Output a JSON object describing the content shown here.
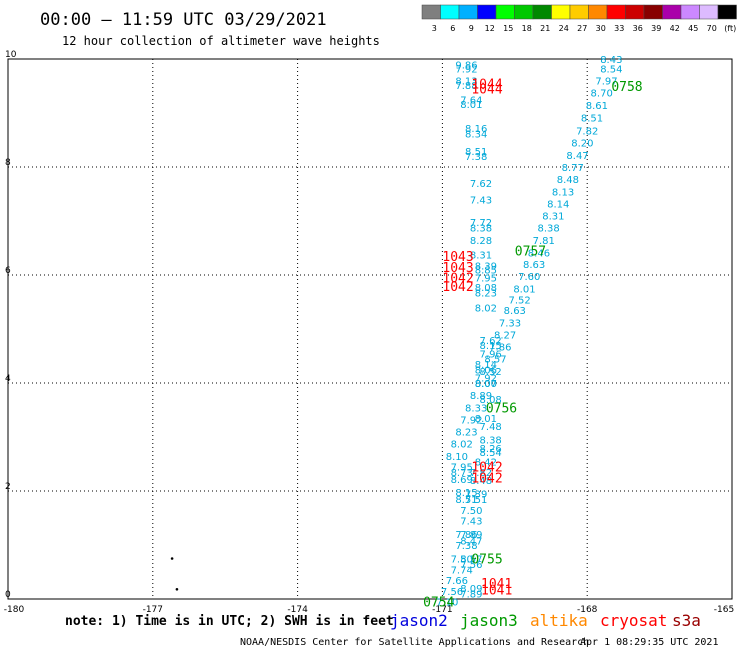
{
  "header": {
    "title": "00:00 – 11:59 UTC 03/29/2021",
    "subtitle": "12 hour collection of altimeter wave heights"
  },
  "colorbar": {
    "labels": [
      "3",
      "6",
      "9",
      "12",
      "15",
      "18",
      "21",
      "24",
      "27",
      "30",
      "33",
      "36",
      "39",
      "42",
      "45",
      "70",
      "(ft)"
    ],
    "colors": [
      "#7f7f7f",
      "#00ffff",
      "#00b0ff",
      "#0000ff",
      "#00ff00",
      "#00c800",
      "#008800",
      "#ffff00",
      "#ffcc00",
      "#ff8800",
      "#ff0000",
      "#cc0000",
      "#880000",
      "#aa00aa",
      "#cc88ff",
      "#ddbbff",
      "#000000"
    ]
  },
  "footer": {
    "note": "note: 1) Time is in UTC; 2) SWH is in feet",
    "credit": "NOAA/NESDIS Center for Satellite Applications and Research",
    "timestamp": "Apr  1 08:29:35 UTC 2021"
  },
  "legend": [
    {
      "name": "jason2",
      "color": "#0000dd"
    },
    {
      "name": "jason3",
      "color": "#009900"
    },
    {
      "name": "altika",
      "color": "#ff8800"
    },
    {
      "name": "cryosat",
      "color": "#ff0000"
    },
    {
      "name": "s3a",
      "color": "#990000"
    }
  ],
  "chart_data": {
    "type": "scatter",
    "xlim": [
      -180,
      -165
    ],
    "ylim": [
      0,
      10
    ],
    "xticks": [
      "-180",
      "-177",
      "-174",
      "-171",
      "-168",
      "-165"
    ],
    "yticks": [
      "0",
      "2",
      "4",
      "6",
      "8",
      "10"
    ],
    "grid": true,
    "value_color": "#00a8d8",
    "track_left": [
      {
        "x": -170.5,
        "y": 9.9,
        "v": "9.86"
      },
      {
        "x": -170.5,
        "y": 9.82,
        "v": "7.92"
      },
      {
        "x": -170.5,
        "y": 9.6,
        "v": "8.13"
      },
      {
        "x": -170.5,
        "y": 9.52,
        "v": "7.88"
      },
      {
        "x": -170.4,
        "y": 9.25,
        "v": "7.64"
      },
      {
        "x": -170.4,
        "y": 9.17,
        "v": "8.01"
      },
      {
        "x": -170.3,
        "y": 8.72,
        "v": "8.16"
      },
      {
        "x": -170.3,
        "y": 8.62,
        "v": "8.34"
      },
      {
        "x": -170.3,
        "y": 8.3,
        "v": "8.51"
      },
      {
        "x": -170.3,
        "y": 8.2,
        "v": "7.38"
      },
      {
        "x": -170.2,
        "y": 7.7,
        "v": "7.62"
      },
      {
        "x": -170.2,
        "y": 7.4,
        "v": "7.43"
      },
      {
        "x": -170.2,
        "y": 6.98,
        "v": "7.72"
      },
      {
        "x": -170.2,
        "y": 6.88,
        "v": "8.38"
      },
      {
        "x": -170.2,
        "y": 6.65,
        "v": "8.28"
      },
      {
        "x": -170.2,
        "y": 6.38,
        "v": "8.31"
      },
      {
        "x": -170.1,
        "y": 6.18,
        "v": "8.39"
      },
      {
        "x": -170.1,
        "y": 6.1,
        "v": "8.85"
      },
      {
        "x": -170.1,
        "y": 5.95,
        "v": "7.95"
      },
      {
        "x": -170.1,
        "y": 5.78,
        "v": "8.08"
      },
      {
        "x": -170.1,
        "y": 5.68,
        "v": "8.23"
      },
      {
        "x": -170.1,
        "y": 5.4,
        "v": "8.02"
      },
      {
        "x": -170.0,
        "y": 4.8,
        "v": "7.62"
      },
      {
        "x": -170.0,
        "y": 4.7,
        "v": "8.15"
      },
      {
        "x": -170.0,
        "y": 4.55,
        "v": "7.96"
      },
      {
        "x": -170.1,
        "y": 4.35,
        "v": "8.14"
      },
      {
        "x": -170.1,
        "y": 4.25,
        "v": "8.06"
      },
      {
        "x": -170.1,
        "y": 4.1,
        "v": "7.92"
      },
      {
        "x": -170.1,
        "y": 4.0,
        "v": "8.07"
      },
      {
        "x": -170.0,
        "y": 3.7,
        "v": "8.08"
      },
      {
        "x": -170.1,
        "y": 3.35,
        "v": "8.01"
      },
      {
        "x": -170.0,
        "y": 3.2,
        "v": "7.48"
      },
      {
        "x": -170.0,
        "y": 2.95,
        "v": "8.38"
      },
      {
        "x": -170.0,
        "y": 2.8,
        "v": "8.26"
      },
      {
        "x": -170.0,
        "y": 2.72,
        "v": "8.54"
      },
      {
        "x": -170.1,
        "y": 2.55,
        "v": "8.42"
      },
      {
        "x": -170.2,
        "y": 2.35,
        "v": "7.82"
      },
      {
        "x": -170.2,
        "y": 2.2,
        "v": "8.48"
      },
      {
        "x": -170.3,
        "y": 1.95,
        "v": "7.39"
      },
      {
        "x": -170.3,
        "y": 1.85,
        "v": "7.51"
      },
      {
        "x": -170.4,
        "y": 1.65,
        "v": "7.50"
      },
      {
        "x": -170.4,
        "y": 1.45,
        "v": "7.43"
      },
      {
        "x": -170.5,
        "y": 1.2,
        "v": "7.86"
      },
      {
        "x": -170.5,
        "y": 1.0,
        "v": "7.38"
      },
      {
        "x": -170.6,
        "y": 0.75,
        "v": "7.50"
      },
      {
        "x": -170.6,
        "y": 0.55,
        "v": "7.74"
      },
      {
        "x": -170.7,
        "y": 0.35,
        "v": "7.66"
      },
      {
        "x": -170.8,
        "y": 0.15,
        "v": "7.56"
      },
      {
        "x": -170.9,
        "y": -0.05,
        "v": "7.10"
      }
    ],
    "track_right": [
      {
        "x": -167.5,
        "y": 10.0,
        "v": "8.43"
      },
      {
        "x": -167.5,
        "y": 9.82,
        "v": "8.54"
      },
      {
        "x": -167.6,
        "y": 9.6,
        "v": "7.97"
      },
      {
        "x": -167.7,
        "y": 9.38,
        "v": "8.70"
      },
      {
        "x": -167.8,
        "y": 9.15,
        "v": "8.61"
      },
      {
        "x": -167.9,
        "y": 8.92,
        "v": "8.51"
      },
      {
        "x": -168.0,
        "y": 8.68,
        "v": "7.82"
      },
      {
        "x": -168.1,
        "y": 8.45,
        "v": "8.20"
      },
      {
        "x": -168.2,
        "y": 8.22,
        "v": "8.47"
      },
      {
        "x": -168.3,
        "y": 8.0,
        "v": "8.77"
      },
      {
        "x": -168.4,
        "y": 7.78,
        "v": "8.48"
      },
      {
        "x": -168.5,
        "y": 7.55,
        "v": "8.13"
      },
      {
        "x": -168.6,
        "y": 7.32,
        "v": "8.14"
      },
      {
        "x": -168.7,
        "y": 7.1,
        "v": "8.31"
      },
      {
        "x": -168.8,
        "y": 6.88,
        "v": "8.38"
      },
      {
        "x": -168.9,
        "y": 6.65,
        "v": "7.81"
      },
      {
        "x": -169.0,
        "y": 6.42,
        "v": "8.46"
      },
      {
        "x": -169.1,
        "y": 6.2,
        "v": "8.63"
      },
      {
        "x": -169.2,
        "y": 5.98,
        "v": "7.60"
      },
      {
        "x": -169.3,
        "y": 5.75,
        "v": "8.01"
      },
      {
        "x": -169.4,
        "y": 5.55,
        "v": "7.52"
      },
      {
        "x": -169.5,
        "y": 5.35,
        "v": "8.63"
      },
      {
        "x": -169.6,
        "y": 5.12,
        "v": "7.33"
      },
      {
        "x": -169.7,
        "y": 4.9,
        "v": "8.27"
      },
      {
        "x": -169.8,
        "y": 4.68,
        "v": "7.86"
      },
      {
        "x": -169.9,
        "y": 4.45,
        "v": "8.57"
      },
      {
        "x": -170.0,
        "y": 4.22,
        "v": "8.52"
      },
      {
        "x": -170.1,
        "y": 4.0,
        "v": "8.00"
      },
      {
        "x": -170.2,
        "y": 3.78,
        "v": "8.89"
      },
      {
        "x": -170.3,
        "y": 3.55,
        "v": "8.33"
      },
      {
        "x": -170.4,
        "y": 3.32,
        "v": "7.92"
      },
      {
        "x": -170.5,
        "y": 3.1,
        "v": "8.23"
      },
      {
        "x": -170.6,
        "y": 2.88,
        "v": "8.02"
      },
      {
        "x": -170.7,
        "y": 2.65,
        "v": "8.10"
      },
      {
        "x": -170.6,
        "y": 2.45,
        "v": "7.95"
      },
      {
        "x": -170.6,
        "y": 2.35,
        "v": "8.73"
      },
      {
        "x": -170.6,
        "y": 2.22,
        "v": "8.69"
      },
      {
        "x": -170.5,
        "y": 1.98,
        "v": "8.15"
      },
      {
        "x": -170.5,
        "y": 1.85,
        "v": "8.51"
      },
      {
        "x": -170.4,
        "y": 1.2,
        "v": "7.89"
      },
      {
        "x": -170.4,
        "y": 1.08,
        "v": "8.47"
      },
      {
        "x": -170.4,
        "y": 0.75,
        "v": "8.57"
      },
      {
        "x": -170.4,
        "y": 0.65,
        "v": "7.56"
      },
      {
        "x": -170.4,
        "y": 0.2,
        "v": "8.09"
      },
      {
        "x": -170.4,
        "y": 0.1,
        "v": "7.89"
      }
    ],
    "passes": [
      {
        "x": -170.4,
        "y": 9.55,
        "text": "1044",
        "sat": "cryosat"
      },
      {
        "x": -170.4,
        "y": 9.45,
        "text": "1044",
        "sat": "cryosat"
      },
      {
        "x": -167.5,
        "y": 9.5,
        "text": "0758",
        "sat": "jason3"
      },
      {
        "x": -169.5,
        "y": 6.45,
        "text": "0757",
        "sat": "jason3"
      },
      {
        "x": -171.0,
        "y": 6.35,
        "text": "1043",
        "sat": "cryosat"
      },
      {
        "x": -171.0,
        "y": 6.15,
        "text": "1043",
        "sat": "cryosat"
      },
      {
        "x": -171.0,
        "y": 5.95,
        "text": "1042",
        "sat": "cryosat"
      },
      {
        "x": -171.0,
        "y": 5.8,
        "text": "1042",
        "sat": "cryosat"
      },
      {
        "x": -170.1,
        "y": 3.55,
        "text": "0756",
        "sat": "jason3"
      },
      {
        "x": -170.4,
        "y": 2.45,
        "text": "1042",
        "sat": "cryosat"
      },
      {
        "x": -170.4,
        "y": 2.25,
        "text": "1042",
        "sat": "cryosat"
      },
      {
        "x": -170.4,
        "y": 0.75,
        "text": "0755",
        "sat": "jason3"
      },
      {
        "x": -170.2,
        "y": 0.3,
        "text": "1041",
        "sat": "cryosat"
      },
      {
        "x": -170.2,
        "y": 0.18,
        "text": "1041",
        "sat": "cryosat"
      },
      {
        "x": -171.4,
        "y": -0.05,
        "text": "0754",
        "sat": "jason3"
      }
    ],
    "points": [
      {
        "x": -176.6,
        "y": 0.75
      },
      {
        "x": -176.5,
        "y": 0.18
      }
    ]
  }
}
